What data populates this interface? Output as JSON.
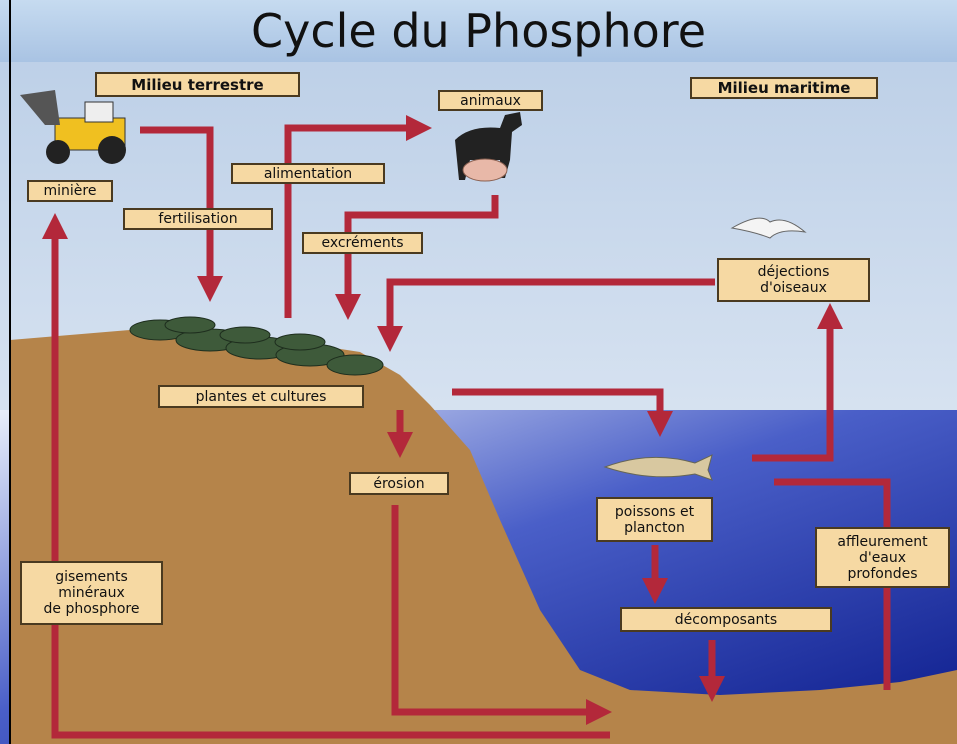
{
  "title": "Cycle du Phosphore",
  "regions": [
    "Milieu terrestre",
    "Milieu maritime"
  ],
  "nodes": [
    {
      "lines": [
        "animaux"
      ]
    },
    {
      "lines": [
        "minière"
      ]
    },
    {
      "lines": [
        "alimentation"
      ]
    },
    {
      "lines": [
        "fertilisation"
      ]
    },
    {
      "lines": [
        "excréments"
      ]
    },
    {
      "lines": [
        "déjections",
        "d'oiseaux"
      ]
    },
    {
      "lines": [
        "plantes et cultures"
      ]
    },
    {
      "lines": [
        "érosion"
      ]
    },
    {
      "lines": [
        "poissons et",
        "plancton"
      ]
    },
    {
      "lines": [
        "affleurement",
        "d'eaux",
        "profondes"
      ]
    },
    {
      "lines": [
        "gisements",
        "minéraux",
        "de phosphore"
      ]
    },
    {
      "lines": [
        "décomposants"
      ]
    }
  ]
}
